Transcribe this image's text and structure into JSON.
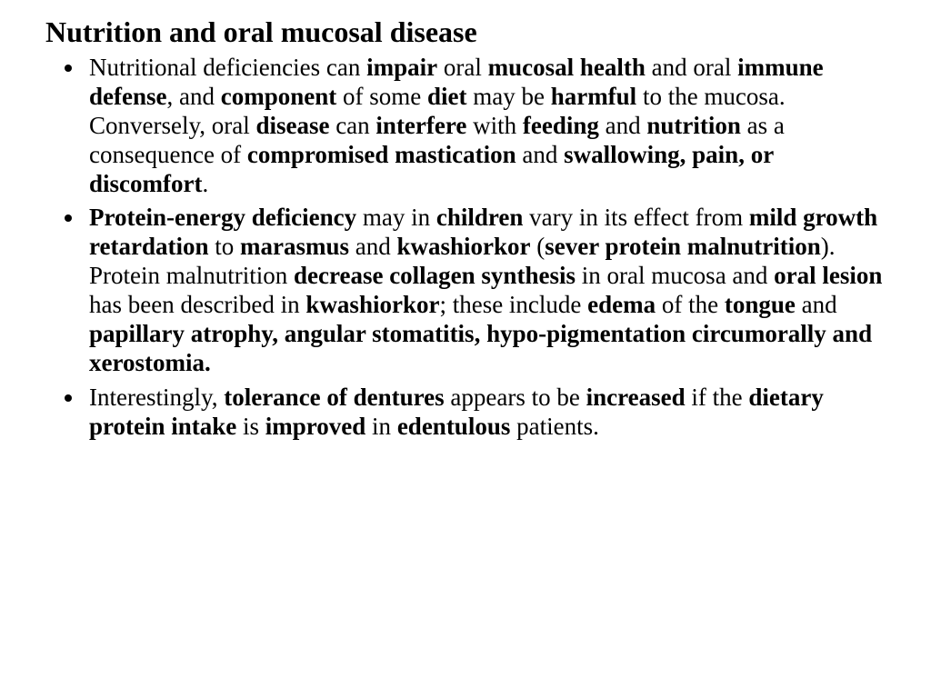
{
  "background_color": "#ffffff",
  "text_color": "#000000",
  "font_family": "Times New Roman",
  "title_fontsize": 32,
  "body_fontsize": 27,
  "title": "Nutrition and oral mucosal disease",
  "bullets": [
    {
      "runs": [
        {
          "t": "Nutritional deficiencies can ",
          "b": false
        },
        {
          "t": "impair",
          "b": true
        },
        {
          "t": " oral ",
          "b": false
        },
        {
          "t": "mucosal health",
          "b": true
        },
        {
          "t": " and oral ",
          "b": false
        },
        {
          "t": "immune defense",
          "b": true
        },
        {
          "t": ", and ",
          "b": false
        },
        {
          "t": "component",
          "b": true
        },
        {
          "t": " of some ",
          "b": false
        },
        {
          "t": "diet",
          "b": true
        },
        {
          "t": " may be ",
          "b": false
        },
        {
          "t": "harmful",
          "b": true
        },
        {
          "t": " to the mucosa. Conversely, oral ",
          "b": false
        },
        {
          "t": "disease",
          "b": true
        },
        {
          "t": " can ",
          "b": false
        },
        {
          "t": "interfere",
          "b": true
        },
        {
          "t": " with ",
          "b": false
        },
        {
          "t": "feeding",
          "b": true
        },
        {
          "t": " and ",
          "b": false
        },
        {
          "t": "nutrition",
          "b": true
        },
        {
          "t": " as a consequence of ",
          "b": false
        },
        {
          "t": "compromised mastication",
          "b": true
        },
        {
          "t": " and ",
          "b": false
        },
        {
          "t": "swallowing, pain, or discomfort",
          "b": true
        },
        {
          "t": ".",
          "b": false
        }
      ]
    },
    {
      "runs": [
        {
          "t": "Protein-energy deficiency",
          "b": true
        },
        {
          "t": " may in ",
          "b": false
        },
        {
          "t": "children",
          "b": true
        },
        {
          "t": " vary in its effect from ",
          "b": false
        },
        {
          "t": "mild growth retardation",
          "b": true
        },
        {
          "t": " to ",
          "b": false
        },
        {
          "t": "marasmus",
          "b": true
        },
        {
          "t": " and ",
          "b": false
        },
        {
          "t": "kwashiorkor",
          "b": true
        },
        {
          "t": " (",
          "b": false
        },
        {
          "t": "sever protein malnutrition",
          "b": true
        },
        {
          "t": "). Protein malnutrition ",
          "b": false
        },
        {
          "t": "decrease collagen synthesis",
          "b": true
        },
        {
          "t": " in oral mucosa and ",
          "b": false
        },
        {
          "t": "oral lesion",
          "b": true
        },
        {
          "t": " has been described in ",
          "b": false
        },
        {
          "t": "kwashiorkor",
          "b": true
        },
        {
          "t": "; these include ",
          "b": false
        },
        {
          "t": "edema",
          "b": true
        },
        {
          "t": " of the ",
          "b": false
        },
        {
          "t": "tongue",
          "b": true
        },
        {
          "t": " and ",
          "b": false
        },
        {
          "t": "papillary atrophy, angular stomatitis, hypo-pigmentation circumorally and xerostomia.",
          "b": true
        }
      ]
    },
    {
      "runs": [
        {
          "t": "Interestingly, ",
          "b": false
        },
        {
          "t": "tolerance of dentures",
          "b": true
        },
        {
          "t": " appears to be ",
          "b": false
        },
        {
          "t": "increased",
          "b": true
        },
        {
          "t": " if the ",
          "b": false
        },
        {
          "t": "dietary protein intake",
          "b": true
        },
        {
          "t": " is ",
          "b": false
        },
        {
          "t": "improved",
          "b": true
        },
        {
          "t": " in ",
          "b": false
        },
        {
          "t": "edentulous",
          "b": true
        },
        {
          "t": " patients.",
          "b": false
        }
      ]
    }
  ]
}
